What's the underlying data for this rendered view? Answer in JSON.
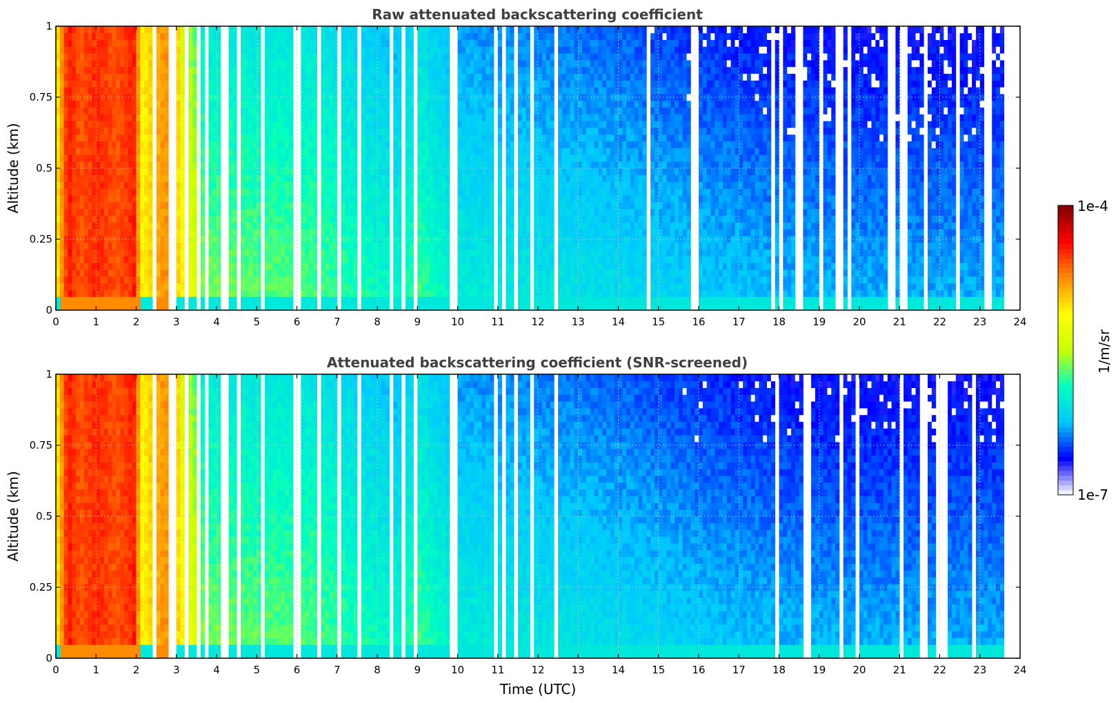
{
  "chart_data": [
    {
      "type": "heatmap",
      "title": "Raw attenuated backscattering coefficient",
      "xlabel": "",
      "ylabel": "Altitude (km)",
      "xlim": [
        0,
        24
      ],
      "ylim": [
        0,
        1
      ],
      "x_ticks": [
        "0",
        "1",
        "2",
        "3",
        "4",
        "5",
        "6",
        "7",
        "8",
        "9",
        "10",
        "11",
        "12",
        "13",
        "14",
        "15",
        "16",
        "17",
        "18",
        "19",
        "20",
        "21",
        "22",
        "23",
        "24"
      ],
      "y_ticks": [
        "0",
        "0.25",
        "0.5",
        "0.75",
        "1"
      ],
      "grid": true,
      "screened": false,
      "data_end_time": 23.6,
      "time_profile": [
        {
          "t": 0.0,
          "level": 0.62
        },
        {
          "t": 0.3,
          "level": 0.86
        },
        {
          "t": 0.6,
          "level": 0.8
        },
        {
          "t": 1.0,
          "level": 0.84
        },
        {
          "t": 1.5,
          "level": 0.8
        },
        {
          "t": 2.0,
          "level": 0.85
        },
        {
          "t": 2.1,
          "level": 0.62
        },
        {
          "t": 2.7,
          "level": 0.75
        },
        {
          "t": 3.3,
          "level": 0.6
        },
        {
          "t": 3.7,
          "level": 0.45
        },
        {
          "t": 5.0,
          "level": 0.44
        },
        {
          "t": 6.5,
          "level": 0.43
        },
        {
          "t": 8.5,
          "level": 0.36
        },
        {
          "t": 9.0,
          "level": 0.42
        },
        {
          "t": 10.0,
          "level": 0.34
        },
        {
          "t": 12.0,
          "level": 0.32
        },
        {
          "t": 14.0,
          "level": 0.3
        },
        {
          "t": 16.0,
          "level": 0.27
        },
        {
          "t": 18.0,
          "level": 0.25
        },
        {
          "t": 20.0,
          "level": 0.24
        },
        {
          "t": 22.0,
          "level": 0.24
        },
        {
          "t": 23.6,
          "level": 0.24
        }
      ]
    },
    {
      "type": "heatmap",
      "title": "Attenuated backscattering coefficient (SNR-screened)",
      "xlabel": "Time (UTC)",
      "ylabel": "Altitude (km)",
      "xlim": [
        0,
        24
      ],
      "ylim": [
        0,
        1
      ],
      "x_ticks": [
        "0",
        "1",
        "2",
        "3",
        "4",
        "5",
        "6",
        "7",
        "8",
        "9",
        "10",
        "11",
        "12",
        "13",
        "14",
        "15",
        "16",
        "17",
        "18",
        "19",
        "20",
        "21",
        "22",
        "23",
        "24"
      ],
      "y_ticks": [
        "0",
        "0.25",
        "0.5",
        "0.75",
        "1"
      ],
      "grid": true,
      "screened": true,
      "data_end_time": 23.6,
      "time_profile": [
        {
          "t": 0.0,
          "level": 0.62
        },
        {
          "t": 0.3,
          "level": 0.86
        },
        {
          "t": 0.6,
          "level": 0.8
        },
        {
          "t": 1.0,
          "level": 0.84
        },
        {
          "t": 1.5,
          "level": 0.8
        },
        {
          "t": 2.0,
          "level": 0.85
        },
        {
          "t": 2.1,
          "level": 0.62
        },
        {
          "t": 2.7,
          "level": 0.75
        },
        {
          "t": 3.3,
          "level": 0.6
        },
        {
          "t": 3.7,
          "level": 0.45
        },
        {
          "t": 5.0,
          "level": 0.44
        },
        {
          "t": 6.5,
          "level": 0.43
        },
        {
          "t": 8.5,
          "level": 0.36
        },
        {
          "t": 9.0,
          "level": 0.42
        },
        {
          "t": 10.0,
          "level": 0.34
        },
        {
          "t": 12.0,
          "level": 0.32
        },
        {
          "t": 14.0,
          "level": 0.3
        },
        {
          "t": 16.0,
          "level": 0.27
        },
        {
          "t": 18.0,
          "level": 0.25
        },
        {
          "t": 20.0,
          "level": 0.24
        },
        {
          "t": 22.0,
          "level": 0.24
        },
        {
          "t": 23.6,
          "level": 0.24
        }
      ]
    }
  ],
  "colorbar": {
    "label": "1/m/sr",
    "max_label": "1e-4",
    "min_label": "1e-7",
    "scale": "log",
    "colors": [
      "#ffffff",
      "#0000ff",
      "#00c8ff",
      "#00ffc0",
      "#c8ff00",
      "#ffff00",
      "#ff8c00",
      "#ff0000",
      "#7f0000"
    ]
  }
}
